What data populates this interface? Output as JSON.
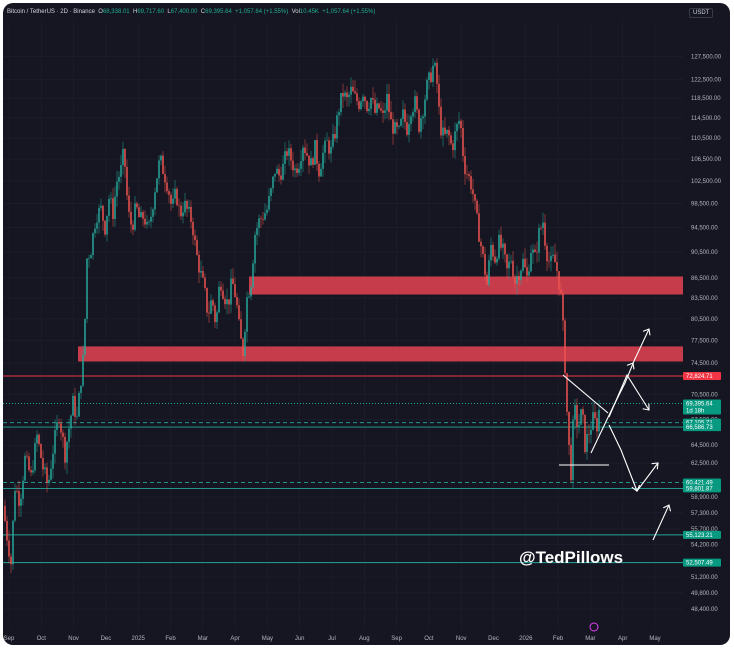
{
  "header": {
    "symbol": "Bitcoin / TetherUS · 2D · Binance",
    "o_label": "O",
    "o_value": "68,338.01",
    "h_label": "H",
    "h_value": "69,717.60",
    "l_label": "L",
    "l_value": "67,400.00",
    "c_label": "C",
    "c_value": "69,395.64",
    "chg": "+1,057.64 (+1.55%)",
    "vol_label": "Vol",
    "vol_value": "10.45K",
    "vol_chg": "+1,057.64 (+1.55%)",
    "currency": "USDT"
  },
  "watermark": "@TedPillows",
  "colors": {
    "background": "#151621",
    "up": "#26a69a",
    "down": "#ef5350",
    "zone": "#d6404e",
    "level_line": "#26a69a",
    "resistance_line": "#f23645",
    "annotation": "#ffffff"
  },
  "chart_data": {
    "type": "candlestick",
    "y_scale": "log",
    "ylim": [
      47400,
      131000
    ],
    "y_ticks": [
      "127,500.00",
      "122,500.00",
      "118,500.00",
      "114,500.00",
      "110,500.00",
      "106,500.00",
      "102,500.00",
      "98,500.00",
      "94,500.00",
      "90,500.00",
      "86,500.00",
      "83,500.00",
      "80,500.00",
      "77,500.00",
      "74,500.00",
      "70,500.00",
      "67,500.00",
      "64,500.00",
      "62,500.00",
      "58,900.00",
      "57,300.00",
      "55,700.00",
      "54,200.00",
      "52,500.00",
      "51,200.00",
      "49,800.00",
      "48,400.00"
    ],
    "x_ticks": [
      "Sep",
      "Oct",
      "Nov",
      "Dec",
      "2025",
      "Feb",
      "Mar",
      "Apr",
      "May",
      "Jun",
      "Jul",
      "Aug",
      "Sep",
      "Oct",
      "Nov",
      "Dec",
      "2026",
      "Feb",
      "Mar",
      "Apr",
      "May"
    ],
    "path": [
      [
        0,
        58000
      ],
      [
        4,
        55000
      ],
      [
        8,
        52500
      ],
      [
        12,
        60000
      ],
      [
        17,
        58500
      ],
      [
        22,
        63000
      ],
      [
        28,
        61000
      ],
      [
        34,
        65500
      ],
      [
        40,
        62000
      ],
      [
        45,
        60000
      ],
      [
        50,
        64000
      ],
      [
        56,
        68000
      ],
      [
        62,
        63500
      ],
      [
        66,
        66500
      ],
      [
        70,
        69500
      ],
      [
        74,
        67500
      ],
      [
        78,
        72500
      ],
      [
        81,
        76000
      ],
      [
        84,
        89500
      ],
      [
        88,
        91000
      ],
      [
        93,
        96500
      ],
      [
        98,
        97500
      ],
      [
        102,
        94500
      ],
      [
        106,
        99500
      ],
      [
        110,
        97000
      ],
      [
        114,
        102500
      ],
      [
        118,
        104500
      ],
      [
        121,
        108000
      ],
      [
        125,
        97000
      ],
      [
        129,
        94500
      ],
      [
        133,
        98000
      ],
      [
        137,
        95500
      ],
      [
        141,
        96500
      ],
      [
        145,
        93500
      ],
      [
        149,
        97500
      ],
      [
        153,
        102500
      ],
      [
        157,
        106500
      ],
      [
        161,
        104000
      ],
      [
        165,
        101500
      ],
      [
        169,
        97500
      ],
      [
        173,
        100500
      ],
      [
        177,
        96500
      ],
      [
        181,
        98500
      ],
      [
        185,
        97000
      ],
      [
        189,
        95500
      ],
      [
        193,
        90500
      ],
      [
        197,
        87500
      ],
      [
        201,
        85000
      ],
      [
        205,
        81000
      ],
      [
        209,
        83500
      ],
      [
        213,
        79500
      ],
      [
        217,
        86500
      ],
      [
        221,
        84000
      ],
      [
        225,
        82500
      ],
      [
        229,
        86000
      ],
      [
        233,
        83500
      ],
      [
        237,
        78000
      ],
      [
        240,
        76000
      ],
      [
        244,
        83500
      ],
      [
        248,
        86000
      ],
      [
        252,
        93500
      ],
      [
        256,
        95500
      ],
      [
        260,
        96500
      ],
      [
        264,
        97500
      ],
      [
        268,
        100500
      ],
      [
        272,
        104500
      ],
      [
        276,
        103500
      ],
      [
        280,
        105000
      ],
      [
        284,
        108000
      ],
      [
        288,
        106500
      ],
      [
        292,
        104500
      ],
      [
        296,
        106000
      ],
      [
        300,
        109500
      ],
      [
        304,
        107500
      ],
      [
        308,
        105500
      ],
      [
        312,
        108500
      ],
      [
        316,
        104500
      ],
      [
        320,
        107500
      ],
      [
        324,
        109500
      ],
      [
        328,
        108000
      ],
      [
        332,
        111500
      ],
      [
        336,
        116500
      ],
      [
        340,
        119500
      ],
      [
        344,
        118000
      ],
      [
        348,
        120000
      ],
      [
        352,
        118500
      ],
      [
        356,
        117500
      ],
      [
        360,
        120000
      ],
      [
        364,
        117000
      ],
      [
        368,
        118500
      ],
      [
        372,
        115500
      ],
      [
        376,
        116500
      ],
      [
        380,
        114500
      ],
      [
        384,
        118500
      ],
      [
        388,
        113500
      ],
      [
        392,
        112000
      ],
      [
        396,
        111500
      ],
      [
        400,
        115000
      ],
      [
        404,
        112500
      ],
      [
        408,
        116500
      ],
      [
        412,
        117500
      ],
      [
        416,
        113000
      ],
      [
        420,
        116500
      ],
      [
        424,
        121000
      ],
      [
        428,
        123500
      ],
      [
        431,
        126000
      ],
      [
        434,
        121500
      ],
      [
        437,
        113000
      ],
      [
        441,
        110500
      ],
      [
        445,
        111500
      ],
      [
        449,
        108500
      ],
      [
        453,
        112000
      ],
      [
        457,
        114500
      ],
      [
        461,
        105500
      ],
      [
        465,
        103500
      ],
      [
        469,
        101500
      ],
      [
        473,
        96500
      ],
      [
        477,
        92500
      ],
      [
        481,
        88500
      ],
      [
        484,
        85500
      ],
      [
        488,
        91500
      ],
      [
        492,
        89500
      ],
      [
        496,
        92000
      ],
      [
        500,
        90500
      ],
      [
        504,
        87500
      ],
      [
        508,
        89500
      ],
      [
        512,
        86000
      ],
      [
        516,
        87500
      ],
      [
        520,
        89000
      ],
      [
        524,
        86500
      ],
      [
        528,
        91000
      ],
      [
        532,
        89500
      ],
      [
        536,
        93500
      ],
      [
        540,
        95500
      ],
      [
        543,
        91000
      ],
      [
        547,
        88500
      ],
      [
        551,
        89500
      ],
      [
        555,
        87000
      ],
      [
        558,
        83500
      ],
      [
        561,
        77000
      ],
      [
        565,
        65500
      ],
      [
        568,
        61500
      ],
      [
        571,
        69000
      ],
      [
        575,
        66500
      ],
      [
        579,
        68500
      ],
      [
        582,
        64500
      ],
      [
        586,
        66000
      ],
      [
        590,
        67500
      ],
      [
        594,
        66800
      ],
      [
        597,
        69395
      ]
    ],
    "zones": [
      {
        "name": "upper resistance zone",
        "from": 84000,
        "to": 86700
      },
      {
        "name": "lower resistance zone",
        "from": 74700,
        "to": 76700
      }
    ],
    "levels": [
      {
        "label": "72,824.71",
        "value": 72824.71,
        "style": "resistance"
      },
      {
        "label": "69,395.64",
        "value": 69395.64,
        "style": "last",
        "sub": "1d 18h"
      },
      {
        "label": "67,105.71",
        "value": 67105.71,
        "style": "dashed"
      },
      {
        "label": "66,586.73",
        "value": 66586.73,
        "style": "solid"
      },
      {
        "label": "60,421.49",
        "value": 60421.49,
        "style": "dashed"
      },
      {
        "label": "59,801.87",
        "value": 59801.87,
        "style": "solid"
      },
      {
        "label": "55,123.21",
        "value": 55123.21,
        "style": "solid"
      },
      {
        "label": "52,507.49",
        "value": 52507.49,
        "style": "solid"
      }
    ]
  }
}
